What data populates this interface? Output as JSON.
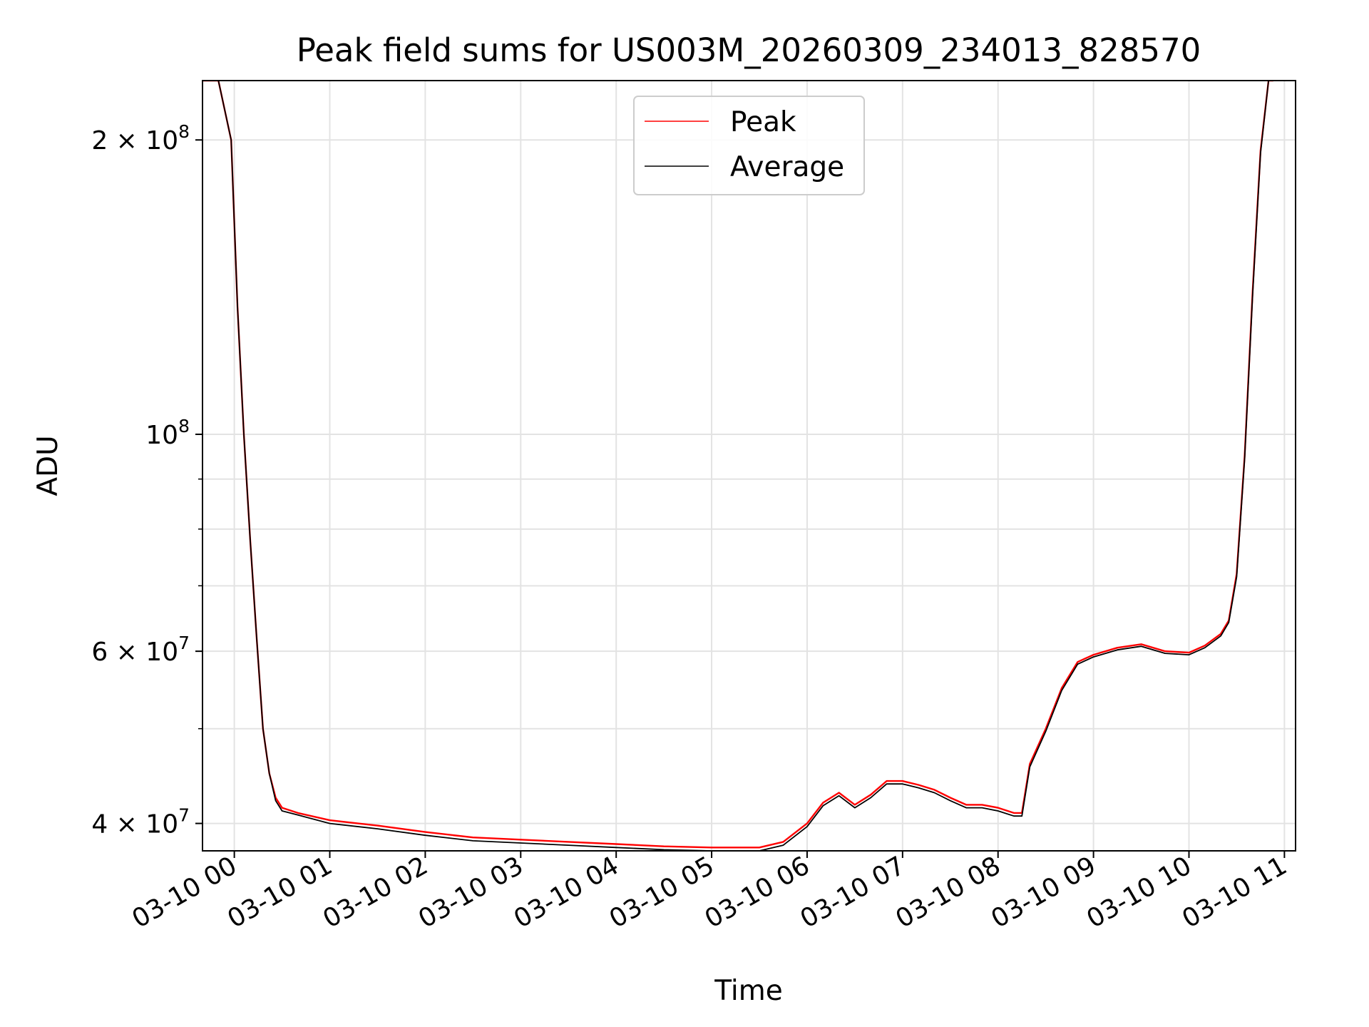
{
  "chart_data": {
    "type": "line",
    "title": "Peak field sums for US003M_20260309_234013_828570",
    "xlabel": "Time",
    "ylabel": "ADU",
    "y_scale": "log",
    "grid": true,
    "legend_position": "top-center",
    "xlim": [
      "2026-03-09 23:40",
      "2026-03-10 11:07"
    ],
    "ylim": [
      37500000,
      230000000
    ],
    "x_ticks": [
      "03-10 00",
      "03-10 01",
      "03-10 02",
      "03-10 03",
      "03-10 04",
      "03-10 05",
      "03-10 06",
      "03-10 07",
      "03-10 08",
      "03-10 09",
      "03-10 10",
      "03-10 11"
    ],
    "y_ticks": [
      {
        "value": 40000000,
        "base": "4 × 10",
        "exp": "7"
      },
      {
        "value": 60000000,
        "base": "6 × 10",
        "exp": "7"
      },
      {
        "value": 100000000,
        "base": "10",
        "exp": "8"
      },
      {
        "value": 200000000,
        "base": "2 × 10",
        "exp": "8"
      }
    ],
    "series": [
      {
        "name": "Peak",
        "color": "#ff0000",
        "x": [
          "2026-03-09 23:40",
          "2026-03-09 23:50",
          "2026-03-09 23:58",
          "2026-03-10 00:02",
          "2026-03-10 00:06",
          "2026-03-10 00:10",
          "2026-03-10 00:14",
          "2026-03-10 00:18",
          "2026-03-10 00:22",
          "2026-03-10 00:26",
          "2026-03-10 00:30",
          "2026-03-10 00:40",
          "2026-03-10 01:00",
          "2026-03-10 01:30",
          "2026-03-10 02:00",
          "2026-03-10 02:30",
          "2026-03-10 03:00",
          "2026-03-10 03:30",
          "2026-03-10 04:00",
          "2026-03-10 04:30",
          "2026-03-10 05:00",
          "2026-03-10 05:30",
          "2026-03-10 05:45",
          "2026-03-10 06:00",
          "2026-03-10 06:10",
          "2026-03-10 06:20",
          "2026-03-10 06:30",
          "2026-03-10 06:40",
          "2026-03-10 06:50",
          "2026-03-10 07:00",
          "2026-03-10 07:10",
          "2026-03-10 07:20",
          "2026-03-10 07:30",
          "2026-03-10 07:40",
          "2026-03-10 07:50",
          "2026-03-10 08:00",
          "2026-03-10 08:10",
          "2026-03-10 08:15",
          "2026-03-10 08:20",
          "2026-03-10 08:30",
          "2026-03-10 08:40",
          "2026-03-10 08:50",
          "2026-03-10 09:00",
          "2026-03-10 09:15",
          "2026-03-10 09:30",
          "2026-03-10 09:45",
          "2026-03-10 10:00",
          "2026-03-10 10:10",
          "2026-03-10 10:20",
          "2026-03-10 10:25",
          "2026-03-10 10:30",
          "2026-03-10 10:35",
          "2026-03-10 10:40",
          "2026-03-10 10:45",
          "2026-03-10 10:50",
          "2026-03-10 10:53"
        ],
        "values": [
          230000000,
          230000000,
          200000000,
          135000000,
          100000000,
          78000000,
          62000000,
          50000000,
          45000000,
          42500000,
          41500000,
          41000000,
          40300000,
          39800000,
          39200000,
          38700000,
          38500000,
          38300000,
          38100000,
          37900000,
          37800000,
          37800000,
          38300000,
          40000000,
          42000000,
          43000000,
          41800000,
          42800000,
          44200000,
          44200000,
          43800000,
          43300000,
          42500000,
          41800000,
          41800000,
          41500000,
          41000000,
          41000000,
          46000000,
          50000000,
          55000000,
          58500000,
          59500000,
          60500000,
          61000000,
          60000000,
          59800000,
          60800000,
          62500000,
          64500000,
          72000000,
          95000000,
          140000000,
          195000000,
          230000000,
          230000000
        ]
      },
      {
        "name": "Average",
        "color": "#000000",
        "x": [
          "2026-03-09 23:40",
          "2026-03-09 23:50",
          "2026-03-09 23:58",
          "2026-03-10 00:02",
          "2026-03-10 00:06",
          "2026-03-10 00:10",
          "2026-03-10 00:14",
          "2026-03-10 00:18",
          "2026-03-10 00:22",
          "2026-03-10 00:26",
          "2026-03-10 00:30",
          "2026-03-10 00:40",
          "2026-03-10 01:00",
          "2026-03-10 01:30",
          "2026-03-10 02:00",
          "2026-03-10 02:30",
          "2026-03-10 03:00",
          "2026-03-10 03:30",
          "2026-03-10 04:00",
          "2026-03-10 04:30",
          "2026-03-10 05:00",
          "2026-03-10 05:30",
          "2026-03-10 05:45",
          "2026-03-10 06:00",
          "2026-03-10 06:10",
          "2026-03-10 06:20",
          "2026-03-10 06:30",
          "2026-03-10 06:40",
          "2026-03-10 06:50",
          "2026-03-10 07:00",
          "2026-03-10 07:10",
          "2026-03-10 07:20",
          "2026-03-10 07:30",
          "2026-03-10 07:40",
          "2026-03-10 07:50",
          "2026-03-10 08:00",
          "2026-03-10 08:10",
          "2026-03-10 08:15",
          "2026-03-10 08:20",
          "2026-03-10 08:30",
          "2026-03-10 08:40",
          "2026-03-10 08:50",
          "2026-03-10 09:00",
          "2026-03-10 09:15",
          "2026-03-10 09:30",
          "2026-03-10 09:45",
          "2026-03-10 10:00",
          "2026-03-10 10:10",
          "2026-03-10 10:20",
          "2026-03-10 10:25",
          "2026-03-10 10:30",
          "2026-03-10 10:35",
          "2026-03-10 10:40",
          "2026-03-10 10:45",
          "2026-03-10 10:50",
          "2026-03-10 10:53"
        ],
        "values": [
          230000000,
          230000000,
          200000000,
          135000000,
          100000000,
          78000000,
          62000000,
          50000000,
          45000000,
          42200000,
          41200000,
          40800000,
          40000000,
          39500000,
          38900000,
          38400000,
          38200000,
          38000000,
          37800000,
          37600000,
          37500000,
          37500000,
          38000000,
          39700000,
          41700000,
          42700000,
          41500000,
          42500000,
          43900000,
          43900000,
          43500000,
          43000000,
          42200000,
          41500000,
          41500000,
          41200000,
          40700000,
          40700000,
          45700000,
          49700000,
          54700000,
          58200000,
          59200000,
          60200000,
          60700000,
          59700000,
          59500000,
          60500000,
          62200000,
          64200000,
          71500000,
          94500000,
          139000000,
          194000000,
          230000000,
          230000000
        ]
      }
    ]
  }
}
